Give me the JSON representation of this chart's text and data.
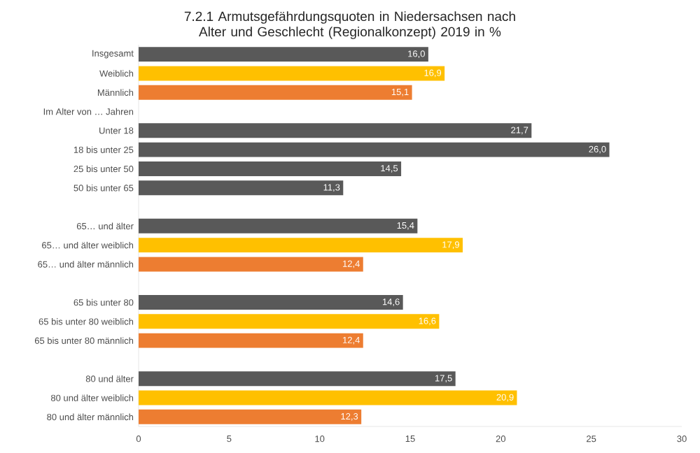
{
  "chart_data": {
    "type": "bar",
    "orientation": "horizontal",
    "title": "7.2.1 Armutsgefährdungsquoten in Niedersachsen nach Alter und Geschlecht (Regionalkonzept) 2019 in %",
    "categories": [
      "Insgesamt",
      "Weiblich",
      "Männlich",
      "Im Alter von … Jahren",
      "Unter 18",
      "18 bis unter 25",
      "25 bis unter 50",
      "50 bis unter 65",
      null,
      "65… und älter",
      "65… und älter weiblich",
      "65… und älter männlich",
      null,
      "65 bis unter 80",
      "65 bis unter 80 weiblich",
      "65 bis unter 80 männlich",
      null,
      "80 und älter",
      "80 und älter weiblich",
      "80 und älter männlich"
    ],
    "values": [
      16.0,
      16.9,
      15.1,
      null,
      21.7,
      26.0,
      14.5,
      11.3,
      null,
      15.4,
      17.9,
      12.4,
      null,
      14.6,
      16.6,
      12.4,
      null,
      17.5,
      20.9,
      12.3
    ],
    "value_labels": [
      "16,0",
      "16,9",
      "15,1",
      null,
      "21,7",
      "26,0",
      "14,5",
      "11,3",
      null,
      "15,4",
      "17,9",
      "12,4",
      null,
      "14,6",
      "16,6",
      "12,4",
      null,
      "17,5",
      "20,9",
      "12,3"
    ],
    "colors": [
      "#595959",
      "#ffc000",
      "#ed7d31",
      null,
      "#595959",
      "#595959",
      "#595959",
      "#595959",
      null,
      "#595959",
      "#ffc000",
      "#ed7d31",
      null,
      "#595959",
      "#ffc000",
      "#ed7d31",
      null,
      "#595959",
      "#ffc000",
      "#ed7d31"
    ],
    "xlim": [
      0,
      30
    ],
    "xticks": [
      0,
      5,
      10,
      15,
      20,
      25,
      30
    ],
    "grid": false
  }
}
